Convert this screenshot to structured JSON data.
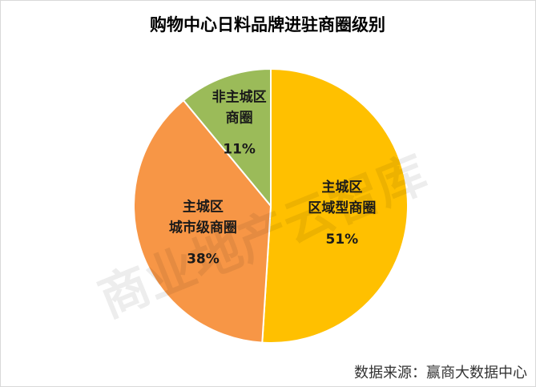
{
  "chart_data": {
    "type": "pie",
    "title": "购物中心日料品牌进驻商圈级别",
    "categories": [
      "主城区\n区域型商圈",
      "主城区\n城市级商圈",
      "非主城区\n商圈"
    ],
    "values": [
      51,
      38,
      11
    ],
    "value_labels": [
      "51%",
      "38%",
      "11%"
    ],
    "colors": [
      "#FFC000",
      "#F79646",
      "#9BBB59"
    ],
    "watermark": "商业地产云智库",
    "source": "数据来源：赢商大数据中心"
  }
}
